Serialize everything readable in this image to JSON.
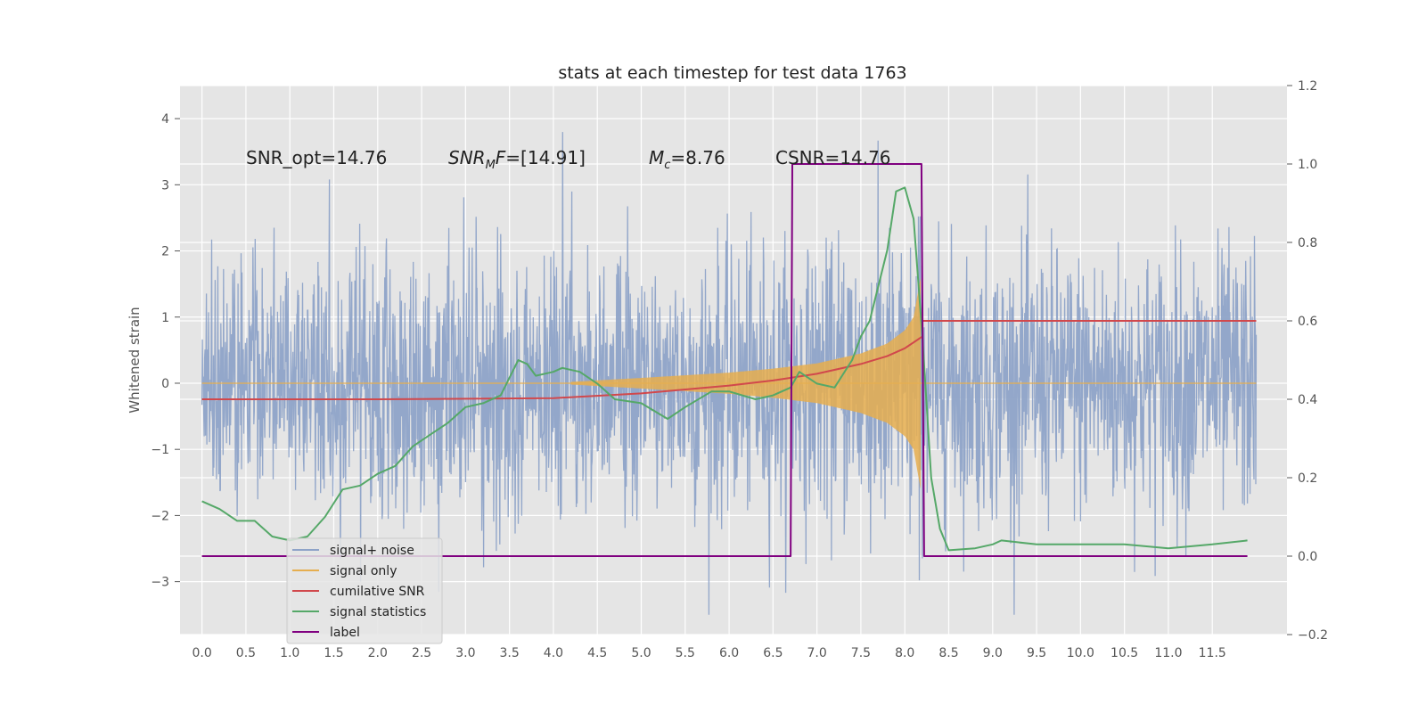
{
  "chart_data": {
    "type": "line",
    "title": "stats at each timestep for test data 1763",
    "xlabel": "",
    "ylabel": "Whitened strain",
    "y2label": "",
    "xlim": [
      -0.25,
      12.35
    ],
    "ylim": [
      -3.8,
      4.5
    ],
    "y2lim": [
      -0.2,
      1.2
    ],
    "x_ticks": [
      "0.0",
      "0.5",
      "1.0",
      "1.5",
      "2.0",
      "2.5",
      "3.0",
      "3.5",
      "4.0",
      "4.5",
      "5.0",
      "5.5",
      "6.0",
      "6.5",
      "7.0",
      "7.5",
      "8.0",
      "8.5",
      "9.0",
      "9.5",
      "10.0",
      "10.5",
      "11.0",
      "11.5"
    ],
    "y_ticks": [
      "−3",
      "−2",
      "−1",
      "0",
      "1",
      "2",
      "3",
      "4"
    ],
    "y2_ticks": [
      "−0.2",
      "0.0",
      "0.2",
      "0.4",
      "0.6",
      "0.8",
      "1.0",
      "1.2"
    ],
    "grid": true,
    "legend_position": "lower-left",
    "annotations": {
      "snr_opt": "SNR_opt=14.76",
      "snr_mf_base": "SNR",
      "snr_mf_sub": "M",
      "snr_mf_rest": "F=[14.91]",
      "mc_base": "M",
      "mc_sub": "c",
      "mc_rest": "=8.76",
      "csnr": "CSNR=14.76"
    },
    "series": [
      {
        "name": "signal+ noise",
        "color": "#8ea3c8",
        "axis": "left",
        "description_values": "noise ~ N(0,1), std 1, duration 0-12 s"
      },
      {
        "name": "signal only",
        "color": "#e6ae4f",
        "axis": "left",
        "envelope": {
          "x": [
            4.2,
            5.0,
            6.0,
            6.5,
            7.0,
            7.5,
            7.8,
            8.0,
            8.1,
            8.18
          ],
          "amp": [
            0.02,
            0.08,
            0.16,
            0.22,
            0.3,
            0.45,
            0.6,
            0.8,
            1.0,
            1.6
          ]
        }
      },
      {
        "name": "cumilative SNR",
        "color": "#d1484c",
        "axis": "right",
        "x": [
          0.0,
          2.0,
          4.0,
          5.0,
          6.0,
          6.5,
          7.0,
          7.5,
          7.8,
          8.0,
          8.2,
          8.2,
          12.0
        ],
        "values": [
          0.4,
          0.4,
          0.403,
          0.415,
          0.435,
          0.448,
          0.465,
          0.49,
          0.51,
          0.53,
          0.56,
          0.6,
          0.6
        ]
      },
      {
        "name": "signal statistics",
        "color": "#55a868",
        "axis": "right",
        "x": [
          0.0,
          0.2,
          0.4,
          0.6,
          0.8,
          1.0,
          1.2,
          1.4,
          1.6,
          1.8,
          2.0,
          2.2,
          2.4,
          2.6,
          2.8,
          3.0,
          3.2,
          3.4,
          3.6,
          3.7,
          3.8,
          4.0,
          4.1,
          4.3,
          4.5,
          4.7,
          5.0,
          5.3,
          5.5,
          5.8,
          6.0,
          6.3,
          6.5,
          6.7,
          6.8,
          7.0,
          7.2,
          7.4,
          7.5,
          7.6,
          7.8,
          7.9,
          8.0,
          8.1,
          8.2,
          8.3,
          8.4,
          8.5,
          8.8,
          9.0,
          9.1,
          9.5,
          10.0,
          10.5,
          11.0,
          11.5,
          11.9
        ],
        "values": [
          0.14,
          0.12,
          0.09,
          0.09,
          0.05,
          0.04,
          0.05,
          0.1,
          0.17,
          0.18,
          0.21,
          0.23,
          0.28,
          0.31,
          0.34,
          0.38,
          0.39,
          0.41,
          0.5,
          0.49,
          0.46,
          0.47,
          0.48,
          0.47,
          0.44,
          0.4,
          0.39,
          0.35,
          0.38,
          0.42,
          0.42,
          0.4,
          0.41,
          0.43,
          0.47,
          0.44,
          0.43,
          0.5,
          0.56,
          0.6,
          0.78,
          0.93,
          0.94,
          0.86,
          0.56,
          0.2,
          0.07,
          0.015,
          0.02,
          0.03,
          0.04,
          0.03,
          0.03,
          0.03,
          0.02,
          0.03,
          0.04
        ]
      },
      {
        "name": "label",
        "color": "#800080",
        "axis": "right",
        "x": [
          0.0,
          6.7,
          6.72,
          8.19,
          8.22,
          11.9
        ],
        "values": [
          0.0,
          0.0,
          1.0,
          1.0,
          0.0,
          0.0
        ]
      }
    ]
  }
}
